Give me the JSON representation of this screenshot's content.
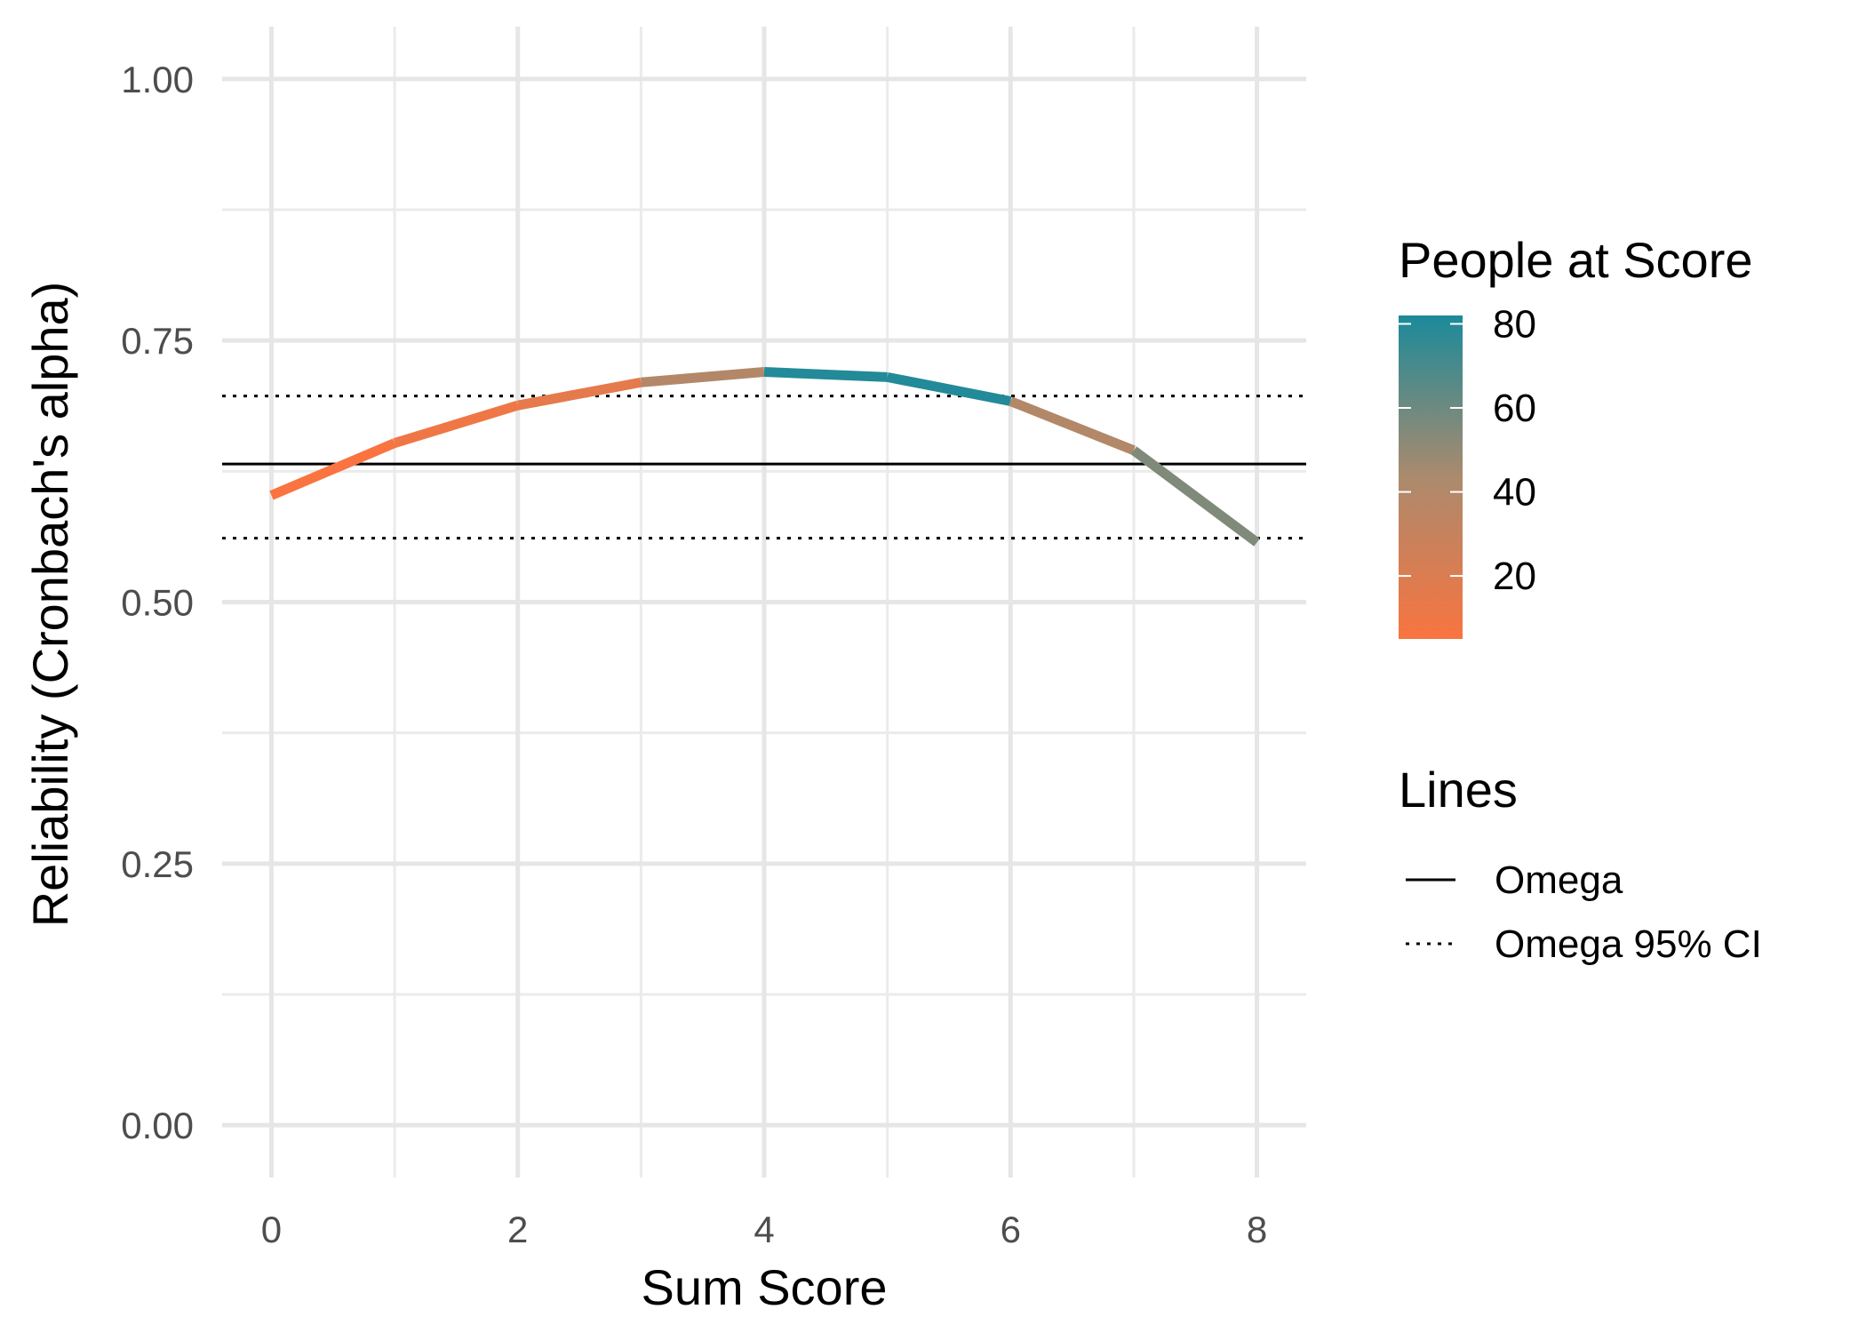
{
  "chart_data": {
    "type": "line",
    "title": "",
    "xlabel": "Sum Score",
    "ylabel": "Reliability (Cronbach's alpha)",
    "xlim": [
      -0.4,
      8.4
    ],
    "ylim": [
      -0.05,
      1.05
    ],
    "x_ticks": [
      0,
      2,
      4,
      6,
      8
    ],
    "x_tick_labels": [
      "0",
      "2",
      "4",
      "6",
      "8"
    ],
    "y_ticks": [
      0,
      0.25,
      0.5,
      0.75,
      1
    ],
    "y_tick_labels": [
      "0.00",
      "0.25",
      "0.50",
      "0.75",
      "1.00"
    ],
    "grid": true,
    "series": [
      {
        "x": [
          0,
          1,
          2,
          3,
          4,
          5,
          6,
          7,
          8
        ],
        "y": [
          0.602,
          0.652,
          0.688,
          0.71,
          0.72,
          0.715,
          0.692,
          0.645,
          0.557
        ],
        "count": [
          5,
          10,
          15,
          40,
          80,
          80,
          40,
          55,
          40
        ]
      }
    ],
    "reference_lines": [
      {
        "name": "Omega",
        "y": 0.632,
        "style": "solid"
      },
      {
        "name": "Omega 95% CI",
        "y": 0.697,
        "style": "dotted"
      },
      {
        "name": "Omega 95% CI",
        "y": 0.561,
        "style": "dotted"
      }
    ],
    "color_scale": {
      "title": "People at Score",
      "min": 5,
      "max": 82,
      "low_color": "#f97440",
      "mid_color": "#ab8a6d",
      "high_color": "#1b8a9a",
      "ticks": [
        20,
        40,
        60,
        80
      ],
      "tick_labels": [
        "20",
        "40",
        "60",
        "80"
      ]
    },
    "line_legend": {
      "title": "Lines",
      "items": [
        {
          "label": "Omega",
          "style": "solid"
        },
        {
          "label": "Omega 95% CI",
          "style": "dotted"
        }
      ]
    },
    "legend_position": "right"
  }
}
